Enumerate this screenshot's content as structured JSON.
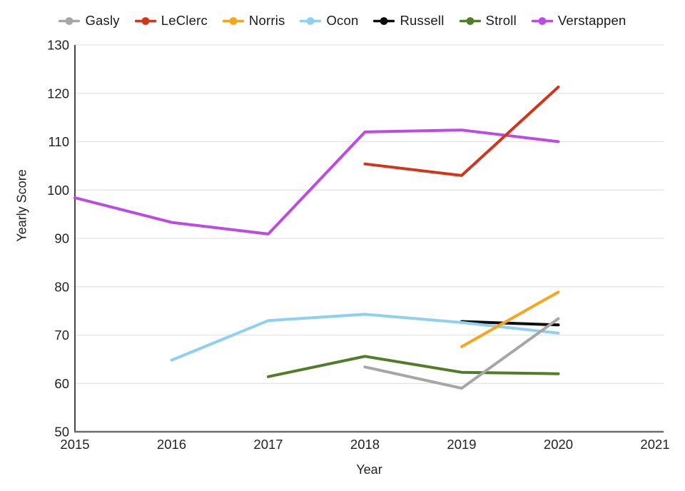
{
  "chart_data": {
    "type": "line",
    "title": "",
    "xlabel": "Year",
    "ylabel": "Yearly Score",
    "xlim": [
      2015,
      2021
    ],
    "ylim": [
      50,
      130
    ],
    "x_ticks": [
      2015,
      2016,
      2017,
      2018,
      2019,
      2020,
      2021
    ],
    "y_ticks": [
      50,
      60,
      70,
      80,
      90,
      100,
      110,
      120,
      130
    ],
    "grid": true,
    "legend_position": "top",
    "series": [
      {
        "name": "Gasly",
        "color": "#a6a6a6",
        "points": [
          [
            2018,
            63.4
          ],
          [
            2019,
            59.0
          ],
          [
            2020,
            73.4
          ]
        ]
      },
      {
        "name": "LeClerc",
        "color": "#d1351b",
        "points": [
          [
            2018,
            105.4
          ],
          [
            2019,
            103.0
          ],
          [
            2020,
            121.3
          ]
        ]
      },
      {
        "name": "Norris",
        "color": "#f5a61e",
        "points": [
          [
            2019,
            67.6
          ],
          [
            2020,
            78.9
          ]
        ]
      },
      {
        "name": "Ocon",
        "color": "#8dd0ef",
        "points": [
          [
            2016,
            64.8
          ],
          [
            2017,
            73.0
          ],
          [
            2018,
            74.3
          ],
          [
            2019,
            72.6
          ],
          [
            2020,
            70.4
          ]
        ]
      },
      {
        "name": "Russell",
        "color": "#0d0d0d",
        "points": [
          [
            2019,
            72.8
          ],
          [
            2020,
            72.1
          ]
        ]
      },
      {
        "name": "Stroll",
        "color": "#517c2a",
        "points": [
          [
            2017,
            61.4
          ],
          [
            2018,
            65.6
          ],
          [
            2019,
            62.3
          ],
          [
            2020,
            62.0
          ]
        ]
      },
      {
        "name": "Verstappen",
        "color": "#bc4be3",
        "points": [
          [
            2015,
            98.4
          ],
          [
            2016,
            93.3
          ],
          [
            2017,
            90.9
          ],
          [
            2018,
            112.0
          ],
          [
            2019,
            112.4
          ],
          [
            2020,
            110.0
          ]
        ]
      }
    ],
    "draw_order": [
      "Verstappen",
      "Stroll",
      "Russell",
      "Ocon",
      "Norris",
      "LeClerc",
      "Gasly"
    ]
  },
  "axis_titles": {
    "x": "Year",
    "y": "Yearly Score"
  },
  "style": {
    "gridline_color": "#e3e3e3",
    "y_axis_color": "#454545",
    "x_axis_color": "#6b6b6b",
    "background": "#ffffff"
  }
}
